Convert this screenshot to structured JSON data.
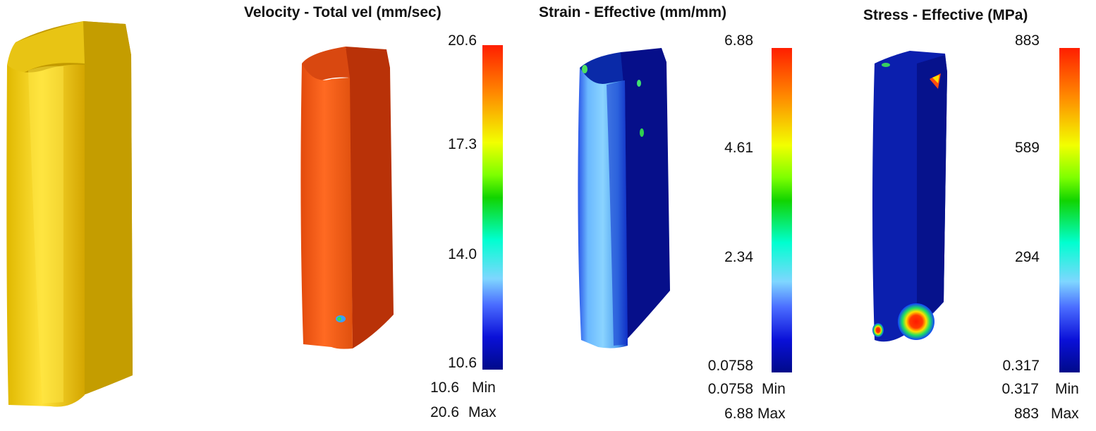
{
  "panels": [
    {
      "title": "Velocity - Total vel (mm/sec)",
      "ticks": [
        "20.6",
        "17.3",
        "14.0",
        "10.6"
      ],
      "min_value": "10.6",
      "max_value": "20.6",
      "min_label": "Min",
      "max_label": "Max"
    },
    {
      "title": "Strain - Effective (mm/mm)",
      "ticks": [
        "6.88",
        "4.61",
        "2.34",
        "0.0758"
      ],
      "min_value": "0.0758",
      "max_value": "6.88",
      "min_label": "Min",
      "max_label": "Max"
    },
    {
      "title": "Stress - Effective (MPa)",
      "ticks": [
        "883",
        "589",
        "294",
        "0.317"
      ],
      "min_value": "0.317",
      "max_value": "883",
      "min_label": "Min",
      "max_label": "Max"
    }
  ],
  "colors": {
    "undeformed_part": "#e6c21a",
    "velocity_part": "#f05a14",
    "strain_part": "#0a1a9a",
    "stress_part": "#0a1a9a"
  }
}
